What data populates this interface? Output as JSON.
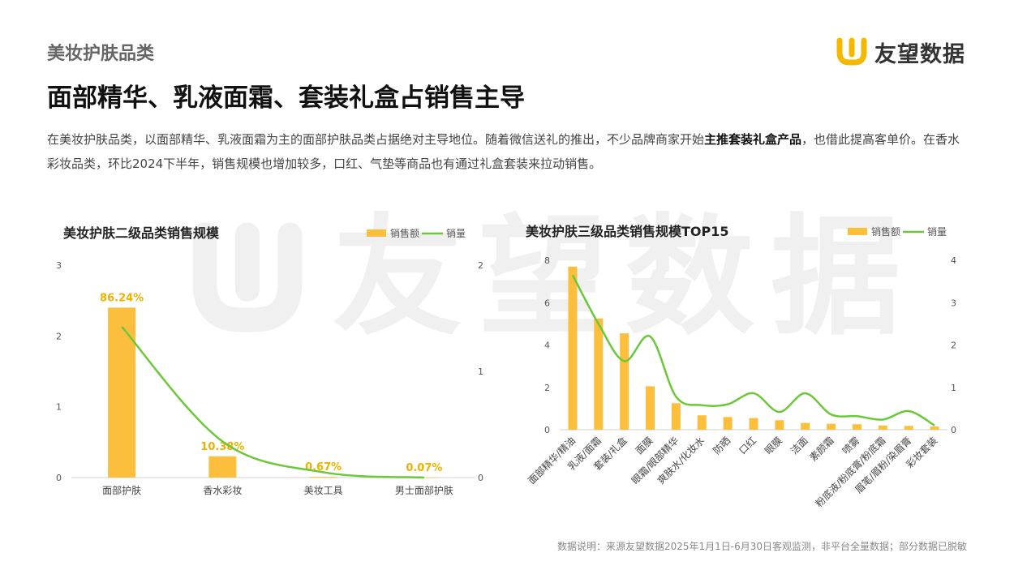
{
  "page": {
    "category": "美妆护肤品类",
    "headline": "面部精华、乳液面霜、套装礼盒占销售主导",
    "desc_part1": "在美妆护肤品类，以面部精华、乳液面霜为主的面部护肤品类占据绝对主导地位。随着微信送礼的推出，不少品牌商家开始",
    "desc_bold": "主推套装礼盒产品",
    "desc_part2": "，也借此提高客单价。在香水彩妆品类，环比2024下半年，销售规模也增加较多，口红、气垫等商品也有通过礼盒套装来拉动销售。",
    "footer": "数据说明：来源友望数据2025年1月1日-6月30日客观监测，非平台全量数据；部分数据已脱敏"
  },
  "brand": {
    "logo_text": "友望数据",
    "logo_color": "#f5b800",
    "watermark_text": "友望数据"
  },
  "colors": {
    "bar": "#fcbf3d",
    "line": "#6cc73a",
    "label": "#f0b000"
  },
  "chart_data": [
    {
      "type": "bar",
      "title": "美妆护肤二级品类销售规模",
      "legend": [
        "销售额",
        "销量"
      ],
      "legend_position": "top-right",
      "categories": [
        "面部护肤",
        "香水彩妆",
        "美妆工具",
        "男士面部护肤"
      ],
      "series": [
        {
          "name": "销售额",
          "type": "bar",
          "axis": "left",
          "values": [
            2.4,
            0.3,
            0.01,
            0.001
          ]
        },
        {
          "name": "销量",
          "type": "line",
          "axis": "right",
          "values": [
            1.42,
            0.34,
            0.05,
            0.0
          ]
        }
      ],
      "data_labels": [
        "86.24%",
        "10.38%",
        "0.67%",
        "0.07%"
      ],
      "y_left": {
        "ticks": [
          0,
          1,
          2,
          3
        ],
        "range": [
          0,
          3
        ]
      },
      "y_right": {
        "ticks": [
          0,
          1,
          2
        ],
        "range": [
          0,
          2
        ]
      },
      "grid": false
    },
    {
      "type": "bar",
      "title": "美妆护肤三级品类销售规模TOP15",
      "legend": [
        "销售额",
        "销量"
      ],
      "legend_position": "top-right",
      "categories": [
        "面部精华/精油",
        "乳液/面霜",
        "套装/礼盒",
        "面膜",
        "眼霜/眼部精华",
        "爽肤水/化妆水",
        "防晒",
        "口红",
        "眼膜",
        "洁面",
        "素颜霜",
        "喷雾",
        "粉底液/粉底膏/粉底霜",
        "眉笔/眉粉/染眉膏",
        "彩妆套装"
      ],
      "series": [
        {
          "name": "销售额",
          "type": "bar",
          "axis": "left",
          "values": [
            7.7,
            5.25,
            4.55,
            2.05,
            1.25,
            0.68,
            0.6,
            0.55,
            0.45,
            0.32,
            0.28,
            0.26,
            0.2,
            0.18,
            0.15
          ]
        },
        {
          "name": "销量",
          "type": "line",
          "axis": "right",
          "values": [
            3.65,
            2.5,
            1.62,
            2.2,
            0.78,
            0.58,
            0.6,
            0.86,
            0.42,
            0.86,
            0.36,
            0.32,
            0.24,
            0.44,
            0.1
          ]
        }
      ],
      "y_left": {
        "ticks": [
          0,
          2,
          4,
          6,
          8
        ],
        "range": [
          0,
          8
        ]
      },
      "y_right": {
        "ticks": [
          0,
          1,
          2,
          3,
          4
        ],
        "range": [
          0,
          4
        ]
      },
      "grid": false
    }
  ]
}
